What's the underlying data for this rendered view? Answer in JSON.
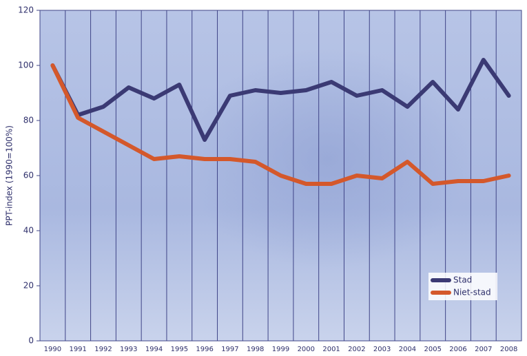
{
  "chart_data": {
    "type": "line",
    "y_label": "PPT-index (1990=100%)",
    "categories": [
      "1990",
      "1991",
      "1992",
      "1993",
      "1994",
      "1995",
      "1996",
      "1997",
      "1998",
      "1999",
      "2000",
      "2001",
      "2002",
      "2003",
      "2004",
      "2005",
      "2006",
      "2007",
      "2008"
    ],
    "series": [
      {
        "name": "Stad",
        "color": "#3b3a74",
        "values": [
          100,
          82,
          85,
          92,
          88,
          93,
          73,
          89,
          91,
          90,
          91,
          94,
          89,
          91,
          85,
          94,
          84,
          102,
          89
        ]
      },
      {
        "name": "Niet-stad",
        "color": "#d4582b",
        "values": [
          100,
          81,
          76,
          71,
          66,
          67,
          66,
          66,
          65,
          60,
          57,
          57,
          60,
          59,
          65,
          57,
          58,
          58,
          60
        ]
      }
    ],
    "ylim": [
      0,
      120
    ],
    "yticks": [
      0,
      20,
      40,
      60,
      80,
      100,
      120
    ],
    "legend": "bottom-right"
  }
}
